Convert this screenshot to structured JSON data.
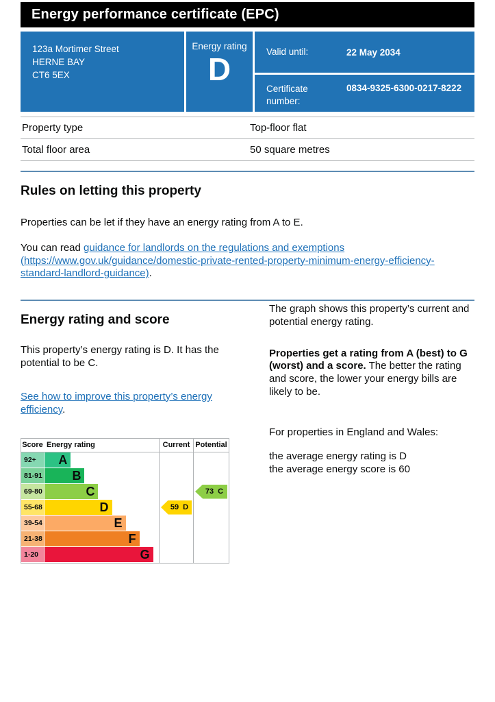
{
  "colors": {
    "banner_bg": "#000000",
    "panel_blue": "#2173b5",
    "separator_blue": "#5d8cb3",
    "link_blue": "#1d70b8",
    "border_gray": "#b1b4b6"
  },
  "banner": {
    "title": "Energy performance certificate (EPC)"
  },
  "summary_box": {
    "address_lines": [
      "123a Mortimer Street",
      "HERNE BAY",
      "CT6 5EX"
    ],
    "energy_rating_label": "Energy rating",
    "energy_rating_value": "D",
    "valid_until_label": "Valid until:",
    "valid_until_value": "22 May 2034",
    "certificate_number_label": "Certificate number:",
    "certificate_number_value": "0834-9325-6300-0217-8222"
  },
  "property_table": {
    "rows": [
      {
        "label": "Property type",
        "value": "Top-floor flat"
      },
      {
        "label": "Total floor area",
        "value": "50 square metres"
      }
    ]
  },
  "rules_section": {
    "heading": "Rules on letting this property",
    "para1": "Properties can be let if they have an energy rating from A to E.",
    "para2_prefix": "You can read ",
    "link_text": "guidance for landlords on the regulations and exemptions (https://www.gov.uk/guidance/domestic-private-rented-property-minimum-energy-efficiency-standard-landlord-guidance)",
    "para2_suffix": "."
  },
  "rating_section": {
    "heading": "Energy rating and score",
    "para1": "This property’s energy rating is D. It has the potential to be C.",
    "improve_link_text": "See how to improve this property’s energy efficiency",
    "improve_link_suffix": ".",
    "right_para1": "The graph shows this property’s current and potential energy rating.",
    "right_para2_bold": "Properties get a rating from A (best) to G (worst) and a score.",
    "right_para2_rest": " The better the rating and score, the lower your energy bills are likely to be.",
    "right_para3": "For properties in England and Wales:",
    "avg_line1": "the average energy rating is D",
    "avg_line2": "the average energy score is 60"
  },
  "chart_data": {
    "type": "bar",
    "title": "EPC energy rating bands",
    "columns": [
      "Score",
      "Energy rating",
      "Current",
      "Potential"
    ],
    "bands": [
      {
        "score": "92+",
        "letter": "A",
        "color": "#2cc284",
        "tint": "#85d8b2",
        "width_pct": 23
      },
      {
        "score": "81-91",
        "letter": "B",
        "color": "#19b459",
        "tint": "#79d199",
        "width_pct": 35
      },
      {
        "score": "69-80",
        "letter": "C",
        "color": "#8dce46",
        "tint": "#c6e6a0",
        "width_pct": 47
      },
      {
        "score": "55-68",
        "letter": "D",
        "color": "#ffd500",
        "tint": "#ffe566",
        "width_pct": 59
      },
      {
        "score": "39-54",
        "letter": "E",
        "color": "#fcaa65",
        "tint": "#fdc99e",
        "width_pct": 71
      },
      {
        "score": "21-38",
        "letter": "F",
        "color": "#ef8023",
        "tint": "#f6b274",
        "width_pct": 83
      },
      {
        "score": "1-20",
        "letter": "G",
        "color": "#e9153b",
        "tint": "#f2849b",
        "width_pct": 95
      }
    ],
    "current": {
      "score": 59,
      "letter": "D",
      "band_index": 3,
      "color": "#ffd500"
    },
    "potential": {
      "score": 73,
      "letter": "C",
      "band_index": 2,
      "color": "#8dce46"
    }
  }
}
